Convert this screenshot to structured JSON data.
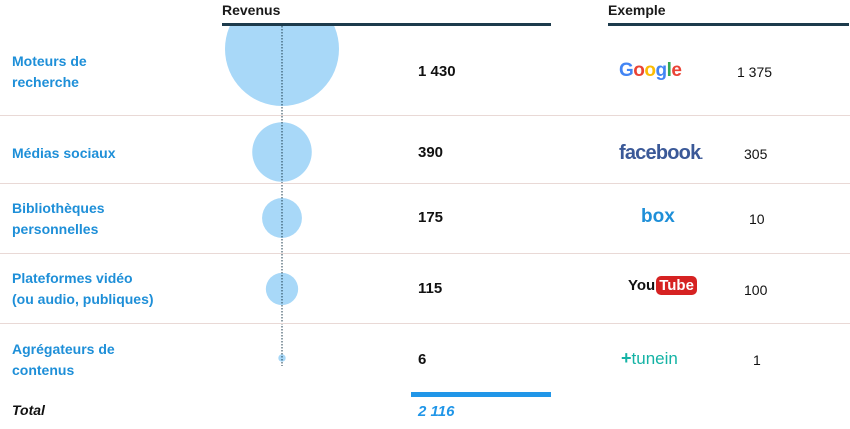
{
  "chart_data": {
    "type": "table",
    "headers": {
      "revenus": "Revenus",
      "exemple": "Exemple"
    },
    "rows": [
      {
        "category": [
          "Moteurs de",
          "recherche"
        ],
        "value": 1430,
        "value_label": "1 430",
        "example_logo": "Google",
        "example_value": "1 375"
      },
      {
        "category": [
          "Médias sociaux"
        ],
        "value": 390,
        "value_label": "390",
        "example_logo": "facebook",
        "example_value": "305"
      },
      {
        "category": [
          "Bibliothèques",
          "personnelles"
        ],
        "value": 175,
        "value_label": "175",
        "example_logo": "box",
        "example_value": "10"
      },
      {
        "category": [
          "Plateformes vidéo",
          "(ou audio, publiques)"
        ],
        "value": 115,
        "value_label": "115",
        "example_logo": "YouTube",
        "example_value": "100"
      },
      {
        "category": [
          "Agrégateurs de",
          "contenus"
        ],
        "value": 6,
        "value_label": "6",
        "example_logo": "tunein",
        "example_value": "1"
      }
    ],
    "total": {
      "label": "Total",
      "value": 2116,
      "value_label": "2 116"
    },
    "bubble_color": "#a8d8f8",
    "accent_color": "#1e8fd8",
    "header_rule_color": "#1d3b4c"
  },
  "logos": {
    "google": {
      "letters": [
        "G",
        "o",
        "o",
        "g",
        "l",
        "e"
      ],
      "colors": [
        "#4285f4",
        "#ea4335",
        "#fbbc05",
        "#4285f4",
        "#34a853",
        "#ea4335"
      ]
    },
    "facebook": {
      "text": "facebook",
      "suffix": "."
    },
    "box": {
      "text": "box"
    },
    "youtube": {
      "you": "You",
      "tube": "Tube"
    },
    "tunein": {
      "plus": "+",
      "text": "tunein"
    }
  }
}
